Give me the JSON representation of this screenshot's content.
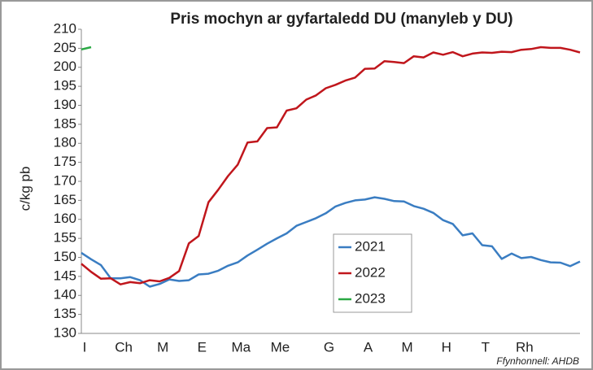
{
  "chart_data": {
    "type": "line",
    "title": "Pris mochyn ar gyfartaledd DU (manyleb y DU)",
    "y_label": "c/kg pb",
    "source": "Ffynhonnell: AHDB",
    "categories": [
      "I",
      null,
      null,
      null,
      "Ch",
      null,
      null,
      null,
      "M",
      null,
      null,
      null,
      "E",
      null,
      null,
      null,
      "Ma",
      null,
      null,
      null,
      "Me",
      null,
      null,
      null,
      null,
      "G",
      null,
      null,
      null,
      "A",
      null,
      null,
      null,
      "M",
      null,
      null,
      null,
      "H",
      null,
      null,
      null,
      "T",
      null,
      null,
      null,
      "Rh",
      null,
      null,
      null,
      null,
      null,
      null
    ],
    "series": [
      {
        "name": "2021",
        "color": "#3a7dc2",
        "values": [
          151.2,
          149.5,
          148,
          144.5,
          144.5,
          144.8,
          144,
          142.3,
          143,
          144.2,
          143.8,
          144,
          145.5,
          145.7,
          146.5,
          147.8,
          148.7,
          150.5,
          152,
          153.6,
          155,
          156.3,
          158.3,
          159.3,
          160.3,
          161.6,
          163.4,
          164.3,
          165,
          165.2,
          165.8,
          165.4,
          164.8,
          164.7,
          163.5,
          162.8,
          161.7,
          159.8,
          158.8,
          155.8,
          156.3,
          153.2,
          152.9,
          149.6,
          151,
          149.8,
          150.1,
          149.3,
          148.7,
          148.6,
          147.7,
          148.9
        ]
      },
      {
        "name": "2022",
        "color": "#c0161c",
        "values": [
          148.3,
          146.2,
          144.4,
          144.5,
          142.9,
          143.5,
          143.2,
          144.0,
          143.7,
          144.6,
          146.4,
          153.7,
          155.6,
          164.5,
          167.8,
          171.4,
          174.4,
          180.2,
          180.5,
          184.0,
          184.2,
          188.6,
          189.2,
          191.5,
          192.6,
          194.5,
          195.4,
          196.5,
          197.3,
          199.6,
          199.7,
          201.6,
          201.4,
          201.1,
          202.9,
          202.6,
          203.9,
          203.3,
          204.0,
          202.9,
          203.6,
          203.9,
          203.8,
          204.1,
          204.0,
          204.6,
          204.8,
          205.3,
          205.1,
          205.1,
          204.6,
          203.9
        ]
      },
      {
        "name": "2023",
        "color": "#2aa844",
        "values": [
          204.7,
          205.3,
          null,
          null,
          null,
          null,
          null,
          null,
          null,
          null,
          null,
          null,
          null,
          null,
          null,
          null,
          null,
          null,
          null,
          null,
          null,
          null,
          null,
          null,
          null,
          null,
          null,
          null,
          null,
          null,
          null,
          null,
          null,
          null,
          null,
          null,
          null,
          null,
          null,
          null,
          null,
          null,
          null,
          null,
          null,
          null,
          null,
          null,
          null,
          null,
          null,
          null
        ]
      }
    ],
    "ylim": [
      130,
      210
    ],
    "yticks": [
      130,
      135,
      140,
      145,
      150,
      155,
      160,
      165,
      170,
      175,
      180,
      185,
      190,
      195,
      200,
      205,
      210
    ],
    "grid": false
  }
}
